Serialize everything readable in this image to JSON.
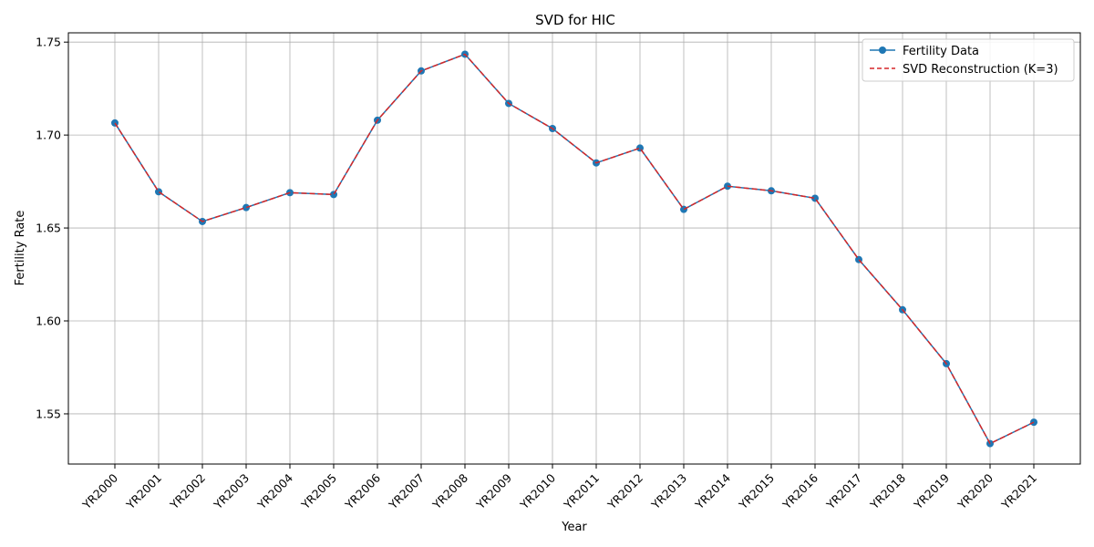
{
  "chart_data": {
    "type": "line",
    "title": "SVD for HIC",
    "xlabel": "Year",
    "ylabel": "Fertility Rate",
    "categories": [
      "YR2000",
      "YR2001",
      "YR2002",
      "YR2003",
      "YR2004",
      "YR2005",
      "YR2006",
      "YR2007",
      "YR2008",
      "YR2009",
      "YR2010",
      "YR2011",
      "YR2012",
      "YR2013",
      "YR2014",
      "YR2015",
      "YR2016",
      "YR2017",
      "YR2018",
      "YR2019",
      "YR2020",
      "YR2021"
    ],
    "ylim": [
      1.523,
      1.755
    ],
    "yticks": [
      "1.55",
      "1.60",
      "1.65",
      "1.70",
      "1.75"
    ],
    "ytick_values": [
      1.55,
      1.6,
      1.65,
      1.7,
      1.75
    ],
    "grid": true,
    "legend_position": "top-right",
    "series": [
      {
        "name": "Fertility Data",
        "style": "solid-marker",
        "color": "#1f77b4",
        "values": [
          1.7065,
          1.6695,
          1.6535,
          1.661,
          1.669,
          1.668,
          1.708,
          1.7345,
          1.7435,
          1.717,
          1.7035,
          1.685,
          1.693,
          1.66,
          1.6725,
          1.67,
          1.666,
          1.633,
          1.606,
          1.577,
          1.534,
          1.5455
        ]
      },
      {
        "name": "SVD Reconstruction (K=3)",
        "style": "dashed",
        "color": "#d62728",
        "values": [
          1.7065,
          1.6695,
          1.6535,
          1.661,
          1.669,
          1.668,
          1.708,
          1.7345,
          1.7435,
          1.717,
          1.7035,
          1.685,
          1.693,
          1.66,
          1.6725,
          1.67,
          1.666,
          1.633,
          1.606,
          1.577,
          1.534,
          1.5455
        ]
      }
    ]
  }
}
